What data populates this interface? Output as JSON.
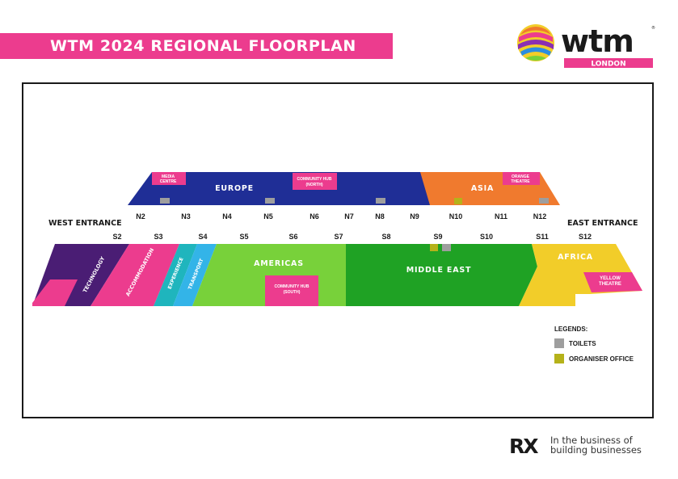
{
  "header": {
    "title": "WTM 2024 REGIONAL FLOORPLAN",
    "logo_word": "wtm",
    "logo_sub": "LONDON"
  },
  "entrances": {
    "west": "WEST ENTRANCE",
    "east": "EAST ENTRANCE"
  },
  "north_labels": [
    "N2",
    "N3",
    "N4",
    "N5",
    "N6",
    "N7",
    "N8",
    "N9",
    "N10",
    "N11",
    "N12"
  ],
  "south_labels": [
    "S2",
    "S3",
    "S4",
    "S5",
    "S6",
    "S7",
    "S8",
    "S9",
    "S10",
    "S11",
    "S12"
  ],
  "zones": {
    "europe": "EUROPE",
    "asia": "ASIA",
    "technology": "TECHNOLOGY",
    "accommodation": "ACCOMMODATION",
    "experience": "EXPERIENCE",
    "transport": "TRANSPORT",
    "americas": "AMERICAS",
    "middle_east": "MIDDLE EAST",
    "africa": "AFRICA"
  },
  "features": {
    "media_centre": [
      "MEDIA",
      "CENTRE"
    ],
    "community_hub_north": [
      "COMMUNITY HUB",
      "(NORTH)"
    ],
    "community_hub_south": [
      "COMMUNITY HUB",
      "(SOUTH)"
    ],
    "orange_theatre": [
      "ORANGE",
      "THEATRE"
    ],
    "yellow_theatre": [
      "YELLOW",
      "THEATRE"
    ]
  },
  "legend": {
    "title": "LEGENDS:",
    "items": [
      {
        "label": "TOILETS",
        "color": "#9e9e9e"
      },
      {
        "label": "ORGANISER OFFICE",
        "color": "#b5b21a"
      }
    ]
  },
  "footer": {
    "brand": "RX",
    "tagline_line1": "In the business of",
    "tagline_line2": "building businesses"
  },
  "colors": {
    "pink": "#ec3c8e",
    "europe": "#1f2e96",
    "asia": "#f07a2e",
    "technology": "#4a1d74",
    "americas": "#78d13a",
    "middle_east": "#1fa224",
    "africa": "#f2cd29",
    "teal": "#1fb5bd",
    "sky": "#33b4e8"
  }
}
